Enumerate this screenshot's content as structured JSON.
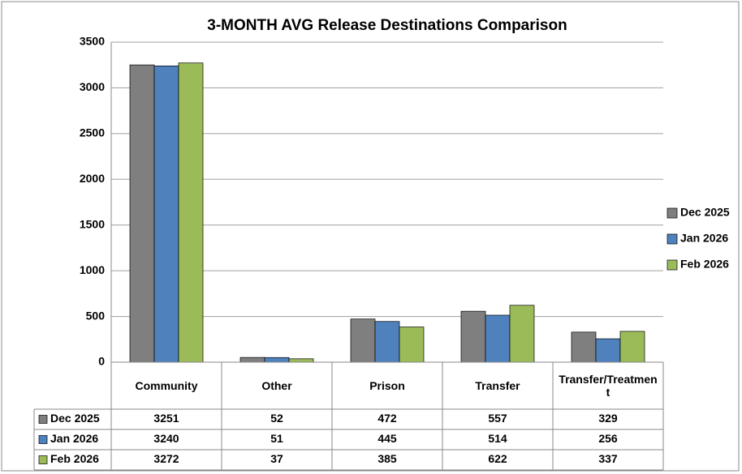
{
  "chart_data": {
    "type": "bar",
    "title": "3-MONTH AVG Release Destinations Comparison",
    "categories": [
      "Community",
      "Other",
      "Prison",
      "Transfer",
      "Transfer/Treatment"
    ],
    "series": [
      {
        "name": "Dec 2025",
        "color": "#7f7f7f",
        "values": [
          3251,
          52,
          472,
          557,
          329
        ]
      },
      {
        "name": "Jan 2026",
        "color": "#4f81bd",
        "values": [
          3240,
          51,
          445,
          514,
          256
        ]
      },
      {
        "name": "Feb 2026",
        "color": "#9bbb59",
        "values": [
          3272,
          37,
          385,
          622,
          337
        ]
      }
    ],
    "ylim": [
      0,
      3500
    ],
    "yticks": [
      0,
      500,
      1000,
      1500,
      2000,
      2500,
      3000,
      3500
    ],
    "grid": true,
    "legend": "right",
    "data_table": true
  }
}
